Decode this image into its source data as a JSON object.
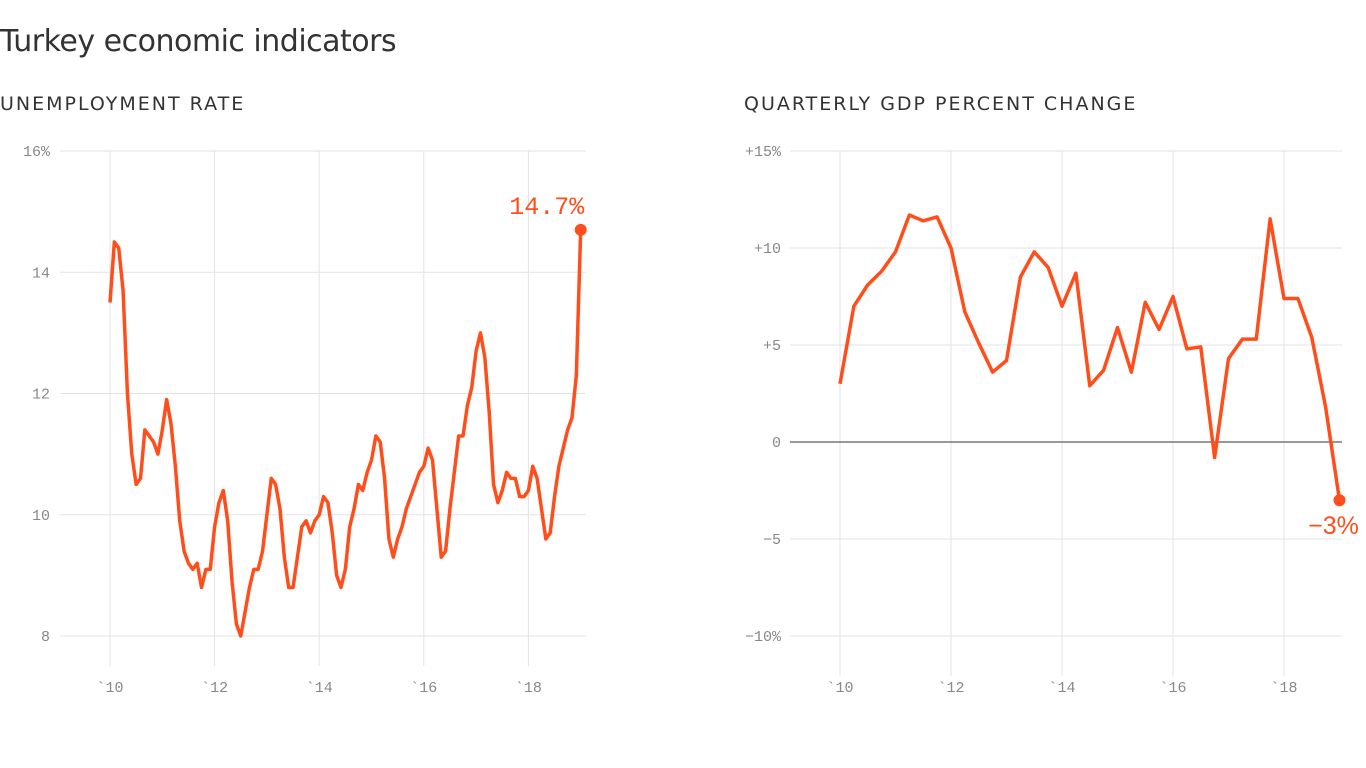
{
  "title": "Turkey economic indicators",
  "colors": {
    "line": "#ff4e1c",
    "grid": "#e3e3e3",
    "zero_line": "#777777",
    "tick": "#888888",
    "text": "#333333"
  },
  "chart_data": [
    {
      "type": "line",
      "title": "UNEMPLOYMENT RATE",
      "ylim": [
        8,
        16
      ],
      "yticks": [
        {
          "value": 16,
          "label": "16%"
        },
        {
          "value": 14,
          "label": "14"
        },
        {
          "value": 12,
          "label": "12"
        },
        {
          "value": 10,
          "label": "10"
        },
        {
          "value": 8,
          "label": "8"
        }
      ],
      "xticks": [
        {
          "value": 2010,
          "label": "`10"
        },
        {
          "value": 2012,
          "label": "`12"
        },
        {
          "value": 2014,
          "label": "`14"
        },
        {
          "value": 2016,
          "label": "`16"
        },
        {
          "value": 2018,
          "label": "`18"
        }
      ],
      "grid": true,
      "frequency": "monthly",
      "x_first": "2010-01",
      "values": [
        13.5,
        14.5,
        14.4,
        13.7,
        12.0,
        11.0,
        10.5,
        10.6,
        11.4,
        11.3,
        11.2,
        11.0,
        11.4,
        11.9,
        11.5,
        10.8,
        9.9,
        9.4,
        9.2,
        9.1,
        9.2,
        8.8,
        9.1,
        9.1,
        9.8,
        10.2,
        10.4,
        9.9,
        8.9,
        8.2,
        8.0,
        8.4,
        8.8,
        9.1,
        9.1,
        9.4,
        10.0,
        10.6,
        10.5,
        10.1,
        9.3,
        8.8,
        8.8,
        9.3,
        9.8,
        9.9,
        9.7,
        9.9,
        10.0,
        10.3,
        10.2,
        9.7,
        9.0,
        8.8,
        9.1,
        9.8,
        10.1,
        10.5,
        10.4,
        10.7,
        10.9,
        11.3,
        11.2,
        10.6,
        9.6,
        9.3,
        9.6,
        9.8,
        10.1,
        10.3,
        10.5,
        10.7,
        10.8,
        11.1,
        10.9,
        10.1,
        9.3,
        9.4,
        10.1,
        10.7,
        11.3,
        11.3,
        11.8,
        12.1,
        12.7,
        13.0,
        12.6,
        11.7,
        10.5,
        10.2,
        10.4,
        10.7,
        10.6,
        10.6,
        10.3,
        10.3,
        10.4,
        10.8,
        10.6,
        10.1,
        9.6,
        9.7,
        10.3,
        10.8,
        11.1,
        11.4,
        11.6,
        12.3,
        14.7
      ],
      "annotation": "14.7%"
    },
    {
      "type": "line",
      "title": "QUARTERLY GDP PERCENT CHANGE",
      "ylim": [
        -12,
        15
      ],
      "yticks": [
        {
          "value": 15,
          "label": "+15%"
        },
        {
          "value": 10,
          "label": "+10"
        },
        {
          "value": 5,
          "label": "+5"
        },
        {
          "value": 0,
          "label": "0"
        },
        {
          "value": -5,
          "label": "−5"
        },
        {
          "value": -10,
          "label": "−10%"
        }
      ],
      "xticks": [
        {
          "value": 2010,
          "label": "`10"
        },
        {
          "value": 2012,
          "label": "`12"
        },
        {
          "value": 2014,
          "label": "`14"
        },
        {
          "value": 2016,
          "label": "`16"
        },
        {
          "value": 2018,
          "label": "`18"
        }
      ],
      "grid": true,
      "frequency": "quarterly",
      "x_first": "2010-Q1",
      "values": [
        3.0,
        7.0,
        8.1,
        8.8,
        9.8,
        11.7,
        11.4,
        11.6,
        10.0,
        6.7,
        5.1,
        3.6,
        4.2,
        8.5,
        9.8,
        9.0,
        7.0,
        8.7,
        2.9,
        3.7,
        5.9,
        3.6,
        7.2,
        5.8,
        7.5,
        4.8,
        4.9,
        -0.8,
        4.3,
        5.3,
        5.3,
        11.5,
        7.4,
        7.4,
        5.4,
        1.8,
        -3.0
      ],
      "annotation": "−3%"
    }
  ]
}
